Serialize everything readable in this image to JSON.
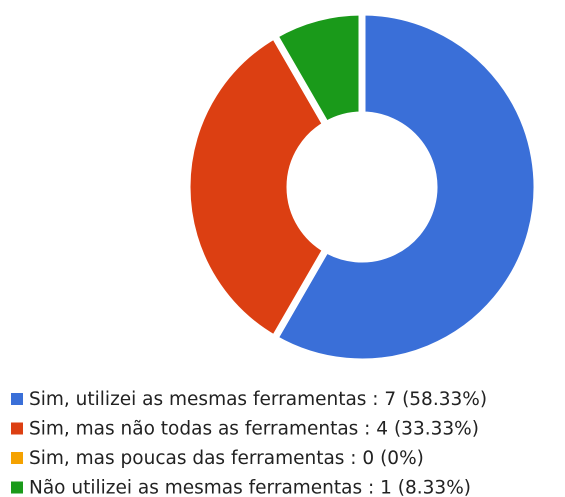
{
  "chart_data": {
    "type": "donut",
    "categories": [
      "Sim, utilizei as mesmas ferramentas : 7 (58.33%)",
      "Sim, mas não todas as ferramentas : 4 (33.33%)",
      "Sim, mas poucas das ferramentas : 0 (0%)",
      "Não utilizei as mesmas ferramentas : 1 (8.33%)"
    ],
    "values": [
      7,
      4,
      0,
      1
    ],
    "colors": [
      "#3a6fd8",
      "#dc3f12",
      "#f5a200",
      "#1a9a1a"
    ]
  }
}
